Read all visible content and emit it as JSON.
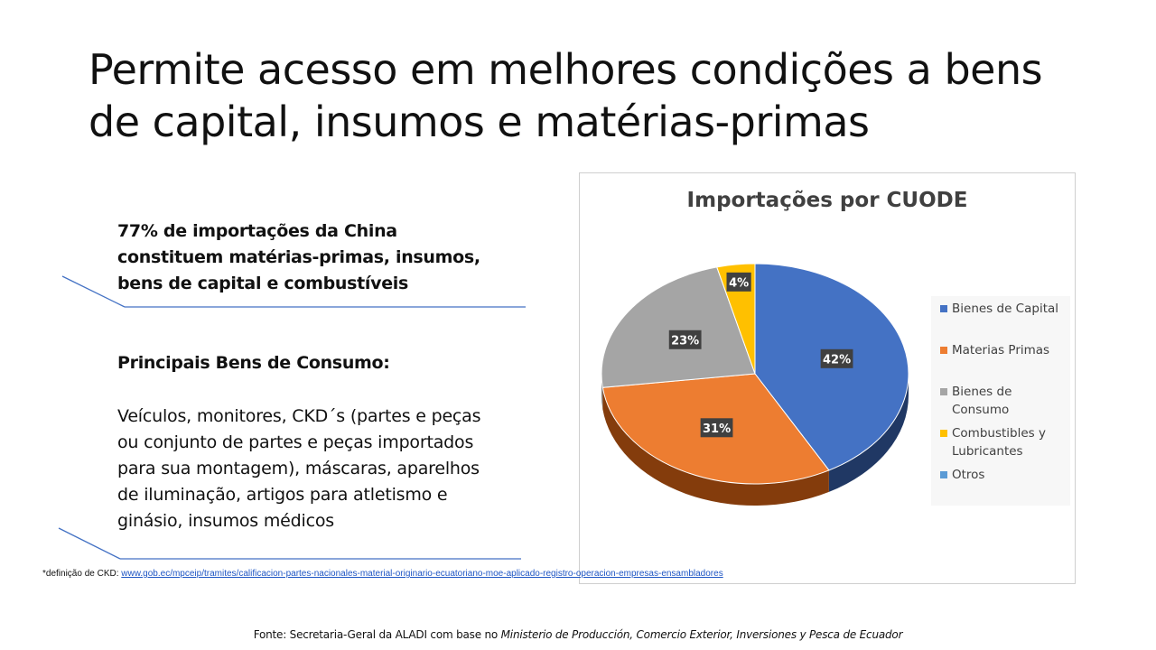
{
  "slide": {
    "title": "Permite acesso em melhores condições a bens de capital, insumos e matérias-primas",
    "bullet1": "77% de importações da China constituem matérias-primas, insumos, bens de capital e combustíveis",
    "bullet2_heading": "Principais Bens de Consumo:",
    "bullet2_body": "Veículos, monitores, CKD´s (partes e peças ou conjunto de partes e peças importados para sua montagem), máscaras, aparelhos de iluminação, artigos para atletismo e ginásio, insumos médicos",
    "footnote_label": "*definição de CKD: ",
    "footnote_link": "www.gob.ec/mpceip/tramites/calificacion-partes-nacionales-material-originario-ecuatoriano-moe-aplicado-registro-operacion-empresas-ensambladores",
    "source_prefix": "Fonte: Secretaria-Geral da ALADI com base no ",
    "source_italic": "Ministerio de Producción, Comercio Exterior, Inversiones y Pesca de Ecuador"
  },
  "chart_data": {
    "type": "pie",
    "title": "Importações por CUODE",
    "legend_position": "right",
    "categories": [
      "Bienes de Capital",
      "Materias Primas",
      "Bienes de Consumo",
      "Combustibles y Lubricantes",
      "Otros"
    ],
    "values": [
      42,
      31,
      23,
      4,
      0
    ],
    "data_labels": [
      "42%",
      "31%",
      "23%",
      "4%",
      ""
    ],
    "colors": [
      "#4472c4",
      "#ed7d31",
      "#a5a5a5",
      "#ffc000",
      "#5b9bd5"
    ],
    "side_colors": [
      "#203864",
      "#843c0c",
      "#7f7f7f",
      "#bf8f00",
      "#2e75b6"
    ]
  }
}
